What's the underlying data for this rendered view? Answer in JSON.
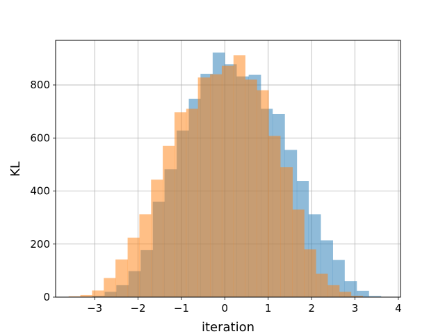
{
  "chart_data": {
    "type": "histogram",
    "xlabel": "iteration",
    "ylabel": "KL",
    "xlim": [
      -3.9,
      4.05
    ],
    "ylim": [
      0,
      968
    ],
    "xticks": [
      -3,
      -2,
      -1,
      0,
      1,
      2,
      3,
      4
    ],
    "xtick_labels": [
      "−3",
      "−2",
      "−1",
      "0",
      "1",
      "2",
      "3",
      "4"
    ],
    "yticks": [
      0,
      200,
      400,
      600,
      800
    ],
    "yticklabels": [
      "0",
      "200",
      "400",
      "600",
      "800"
    ],
    "grid": true,
    "legend": "none",
    "series": [
      {
        "color": "#1f77b4",
        "opacity": 0.5,
        "bin_width": 0.277,
        "bins": [
          {
            "x0": -3.05,
            "x1": -2.77,
            "count": 5
          },
          {
            "x0": -2.77,
            "x1": -2.5,
            "count": 20
          },
          {
            "x0": -2.5,
            "x1": -2.22,
            "count": 45
          },
          {
            "x0": -2.22,
            "x1": -1.94,
            "count": 98
          },
          {
            "x0": -1.94,
            "x1": -1.66,
            "count": 178
          },
          {
            "x0": -1.66,
            "x1": -1.39,
            "count": 360
          },
          {
            "x0": -1.39,
            "x1": -1.11,
            "count": 482
          },
          {
            "x0": -1.11,
            "x1": -0.83,
            "count": 628
          },
          {
            "x0": -0.83,
            "x1": -0.56,
            "count": 748
          },
          {
            "x0": -0.56,
            "x1": -0.28,
            "count": 842
          },
          {
            "x0": -0.28,
            "x1": 0.0,
            "count": 922
          },
          {
            "x0": 0.0,
            "x1": 0.27,
            "count": 878
          },
          {
            "x0": 0.27,
            "x1": 0.55,
            "count": 832
          },
          {
            "x0": 0.55,
            "x1": 0.83,
            "count": 838
          },
          {
            "x0": 0.83,
            "x1": 1.1,
            "count": 710
          },
          {
            "x0": 1.1,
            "x1": 1.38,
            "count": 690
          },
          {
            "x0": 1.38,
            "x1": 1.66,
            "count": 555
          },
          {
            "x0": 1.66,
            "x1": 1.93,
            "count": 438
          },
          {
            "x0": 1.93,
            "x1": 2.21,
            "count": 312
          },
          {
            "x0": 2.21,
            "x1": 2.49,
            "count": 214
          },
          {
            "x0": 2.49,
            "x1": 2.76,
            "count": 140
          },
          {
            "x0": 2.76,
            "x1": 3.04,
            "count": 60
          },
          {
            "x0": 3.04,
            "x1": 3.32,
            "count": 24
          },
          {
            "x0": 3.32,
            "x1": 3.6,
            "count": 4
          }
        ]
      },
      {
        "color": "#ff7f0e",
        "opacity": 0.5,
        "bin_width": 0.272,
        "bins": [
          {
            "x0": -3.6,
            "x1": -3.33,
            "count": 3
          },
          {
            "x0": -3.33,
            "x1": -3.06,
            "count": 8
          },
          {
            "x0": -3.06,
            "x1": -2.79,
            "count": 25
          },
          {
            "x0": -2.79,
            "x1": -2.52,
            "count": 72
          },
          {
            "x0": -2.52,
            "x1": -2.24,
            "count": 142
          },
          {
            "x0": -2.24,
            "x1": -1.97,
            "count": 224
          },
          {
            "x0": -1.97,
            "x1": -1.7,
            "count": 312
          },
          {
            "x0": -1.7,
            "x1": -1.43,
            "count": 443
          },
          {
            "x0": -1.43,
            "x1": -1.16,
            "count": 570
          },
          {
            "x0": -1.16,
            "x1": -0.89,
            "count": 697
          },
          {
            "x0": -0.89,
            "x1": -0.62,
            "count": 710
          },
          {
            "x0": -0.62,
            "x1": -0.34,
            "count": 828
          },
          {
            "x0": -0.34,
            "x1": -0.07,
            "count": 840
          },
          {
            "x0": -0.07,
            "x1": 0.2,
            "count": 872
          },
          {
            "x0": 0.2,
            "x1": 0.47,
            "count": 912
          },
          {
            "x0": 0.47,
            "x1": 0.74,
            "count": 820
          },
          {
            "x0": 0.74,
            "x1": 1.01,
            "count": 780
          },
          {
            "x0": 1.01,
            "x1": 1.28,
            "count": 608
          },
          {
            "x0": 1.28,
            "x1": 1.56,
            "count": 490
          },
          {
            "x0": 1.56,
            "x1": 1.83,
            "count": 330
          },
          {
            "x0": 1.83,
            "x1": 2.1,
            "count": 180
          },
          {
            "x0": 2.1,
            "x1": 2.37,
            "count": 88
          },
          {
            "x0": 2.37,
            "x1": 2.64,
            "count": 45
          },
          {
            "x0": 2.64,
            "x1": 2.91,
            "count": 20
          },
          {
            "x0": 2.91,
            "x1": 3.18,
            "count": 5
          }
        ]
      }
    ]
  }
}
